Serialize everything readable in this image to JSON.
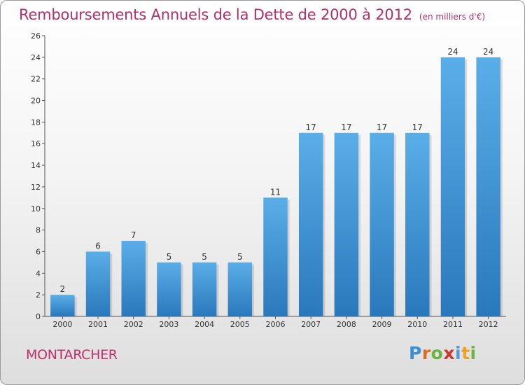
{
  "header": {
    "title": "Remboursements Annuels de la Dette de 2000 à 2012",
    "subtitle": "(en milliers d'€)"
  },
  "footer": {
    "place": "MONTARCHER",
    "logo_text": "Proxiti"
  },
  "colors": {
    "bar_light": "#5aaee8",
    "bar_dark": "#2a78bc",
    "title": "#b0306a",
    "logo_p": "#3a8fd0",
    "logo_r": "#e06a1a",
    "logo_o": "#6db33f",
    "logo_x": "#d0342c",
    "logo_i": "#4b9be0",
    "logo_t": "#f0a020"
  },
  "chart_data": {
    "type": "bar",
    "title": "Remboursements Annuels de la Dette de 2000 à 2012",
    "subtitle": "(en milliers d'€)",
    "categories": [
      "2000",
      "2001",
      "2002",
      "2003",
      "2004",
      "2005",
      "2006",
      "2007",
      "2008",
      "2009",
      "2010",
      "2011",
      "2012"
    ],
    "values": [
      2,
      6,
      7,
      5,
      5,
      5,
      11,
      17,
      17,
      17,
      17,
      24,
      24
    ],
    "data_labels": [
      "2",
      "6",
      "7",
      "5",
      "5",
      "5",
      "11",
      "17",
      "17",
      "17",
      "17",
      "24",
      "24"
    ],
    "ylim": [
      0,
      26
    ],
    "yticks": [
      0,
      2,
      4,
      6,
      8,
      10,
      12,
      14,
      16,
      18,
      20,
      22,
      24,
      26
    ],
    "xlabel": "",
    "ylabel": "",
    "grid": false,
    "legend": "none"
  }
}
